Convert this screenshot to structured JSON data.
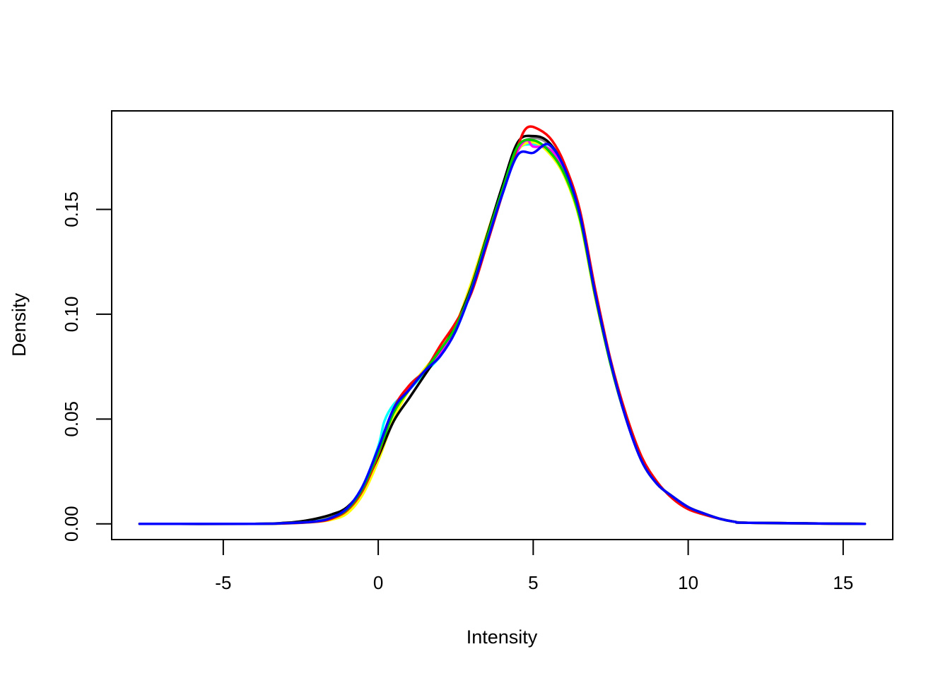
{
  "chart_data": {
    "type": "line",
    "title": "",
    "xlabel": "Intensity",
    "ylabel": "Density",
    "xlim": [
      -8.6,
      16.6
    ],
    "ylim": [
      -0.0075,
      0.197
    ],
    "xticks": [
      -5,
      0,
      5,
      10,
      15
    ],
    "xtick_labels": [
      "-5",
      "0",
      "5",
      "10",
      "15"
    ],
    "yticks": [
      0.0,
      0.05,
      0.1,
      0.15
    ],
    "ytick_labels": [
      "0.00",
      "0.05",
      "0.10",
      "0.15"
    ],
    "grid": false,
    "legend": "none",
    "series": [
      {
        "color": "#888888",
        "points": [
          [
            -7.7,
            0
          ],
          [
            -4,
            0
          ],
          [
            -3,
            0.0005
          ],
          [
            -2,
            0.002
          ],
          [
            -1.5,
            0.004
          ],
          [
            -1,
            0.008
          ],
          [
            -0.5,
            0.017
          ],
          [
            0,
            0.034
          ],
          [
            0.5,
            0.054
          ],
          [
            1,
            0.066
          ],
          [
            1.5,
            0.073
          ],
          [
            2,
            0.082
          ],
          [
            2.5,
            0.094
          ],
          [
            3,
            0.112
          ],
          [
            3.5,
            0.135
          ],
          [
            4,
            0.158
          ],
          [
            4.5,
            0.179
          ],
          [
            5,
            0.184
          ],
          [
            5.5,
            0.181
          ],
          [
            6,
            0.17
          ],
          [
            6.5,
            0.148
          ],
          [
            7,
            0.11
          ],
          [
            7.5,
            0.077
          ],
          [
            8,
            0.051
          ],
          [
            8.5,
            0.03
          ],
          [
            9,
            0.019
          ],
          [
            9.5,
            0.013
          ],
          [
            10,
            0.008
          ],
          [
            10.5,
            0.005
          ],
          [
            11,
            0.0025
          ],
          [
            11.5,
            0.001
          ],
          [
            12,
            0.0005
          ],
          [
            13,
            0.0002
          ],
          [
            15.7,
            0
          ]
        ]
      },
      {
        "color": "#00FFFF",
        "points": [
          [
            -7.7,
            0
          ],
          [
            -4,
            0
          ],
          [
            -3,
            0.0003
          ],
          [
            -2,
            0.0013
          ],
          [
            -1.5,
            0.003
          ],
          [
            -1,
            0.0075
          ],
          [
            -0.5,
            0.018
          ],
          [
            0,
            0.037
          ],
          [
            0.2,
            0.049
          ],
          [
            0.5,
            0.057
          ],
          [
            1,
            0.064
          ],
          [
            1.5,
            0.072
          ],
          [
            2,
            0.08
          ],
          [
            2.5,
            0.092
          ],
          [
            3,
            0.111
          ],
          [
            3.5,
            0.134
          ],
          [
            4,
            0.157
          ],
          [
            4.5,
            0.178
          ],
          [
            5,
            0.181
          ],
          [
            5.5,
            0.179
          ],
          [
            6,
            0.168
          ],
          [
            6.5,
            0.147
          ],
          [
            7,
            0.11
          ],
          [
            7.5,
            0.077
          ],
          [
            8,
            0.05
          ],
          [
            8.5,
            0.03
          ],
          [
            9,
            0.019
          ],
          [
            9.5,
            0.013
          ],
          [
            10,
            0.008
          ],
          [
            10.5,
            0.005
          ],
          [
            11,
            0.0025
          ],
          [
            11.5,
            0.001
          ],
          [
            12,
            0.0005
          ],
          [
            15.7,
            0
          ]
        ]
      },
      {
        "color": "#FFFF00",
        "points": [
          [
            -7.7,
            0
          ],
          [
            -4,
            0
          ],
          [
            -3,
            0.0002
          ],
          [
            -2,
            0.001
          ],
          [
            -1.5,
            0.002
          ],
          [
            -1,
            0.005
          ],
          [
            -0.5,
            0.014
          ],
          [
            0,
            0.03
          ],
          [
            0.5,
            0.05
          ],
          [
            1,
            0.064
          ],
          [
            1.5,
            0.074
          ],
          [
            2,
            0.083
          ],
          [
            2.5,
            0.095
          ],
          [
            3,
            0.115
          ],
          [
            3.5,
            0.138
          ],
          [
            4,
            0.16
          ],
          [
            4.5,
            0.178
          ],
          [
            5,
            0.182
          ],
          [
            5.5,
            0.177
          ],
          [
            6,
            0.166
          ],
          [
            6.5,
            0.145
          ],
          [
            7,
            0.108
          ],
          [
            7.5,
            0.076
          ],
          [
            8,
            0.05
          ],
          [
            8.5,
            0.03
          ],
          [
            9,
            0.019
          ],
          [
            9.5,
            0.013
          ],
          [
            10,
            0.008
          ],
          [
            10.5,
            0.005
          ],
          [
            11,
            0.0025
          ],
          [
            11.5,
            0.001
          ],
          [
            12,
            0.0005
          ],
          [
            15.7,
            0
          ]
        ]
      },
      {
        "color": "#000000",
        "points": [
          [
            -7.7,
            0
          ],
          [
            -4,
            0
          ],
          [
            -3,
            0.0005
          ],
          [
            -2.5,
            0.0012
          ],
          [
            -2,
            0.0025
          ],
          [
            -1.5,
            0.0045
          ],
          [
            -1,
            0.008
          ],
          [
            -0.5,
            0.017
          ],
          [
            0,
            0.032
          ],
          [
            0.5,
            0.049
          ],
          [
            1,
            0.06
          ],
          [
            1.5,
            0.071
          ],
          [
            2,
            0.082
          ],
          [
            2.5,
            0.095
          ],
          [
            3,
            0.113
          ],
          [
            3.5,
            0.137
          ],
          [
            4,
            0.161
          ],
          [
            4.5,
            0.182
          ],
          [
            5,
            0.185
          ],
          [
            5.5,
            0.182
          ],
          [
            6,
            0.17
          ],
          [
            6.5,
            0.147
          ],
          [
            7,
            0.109
          ],
          [
            7.5,
            0.076
          ],
          [
            8,
            0.05
          ],
          [
            8.5,
            0.03
          ],
          [
            9,
            0.019
          ],
          [
            9.5,
            0.013
          ],
          [
            10,
            0.008
          ],
          [
            10.5,
            0.005
          ],
          [
            11,
            0.0025
          ],
          [
            11.5,
            0.001
          ],
          [
            12,
            0.0005
          ],
          [
            15.7,
            0
          ]
        ]
      },
      {
        "color": "#FF00FF",
        "points": [
          [
            -7.7,
            0
          ],
          [
            -4,
            0
          ],
          [
            -3,
            0.0003
          ],
          [
            -2,
            0.0012
          ],
          [
            -1.5,
            0.003
          ],
          [
            -1,
            0.007
          ],
          [
            -0.5,
            0.017
          ],
          [
            0,
            0.035
          ],
          [
            0.5,
            0.054
          ],
          [
            1,
            0.065
          ],
          [
            1.5,
            0.073
          ],
          [
            2,
            0.081
          ],
          [
            2.5,
            0.093
          ],
          [
            3,
            0.112
          ],
          [
            3.5,
            0.135
          ],
          [
            4,
            0.158
          ],
          [
            4.5,
            0.178
          ],
          [
            4.8,
            0.183
          ],
          [
            5,
            0.18
          ],
          [
            5.5,
            0.179
          ],
          [
            6,
            0.169
          ],
          [
            6.5,
            0.147
          ],
          [
            7,
            0.11
          ],
          [
            7.5,
            0.077
          ],
          [
            8,
            0.05
          ],
          [
            8.5,
            0.03
          ],
          [
            9,
            0.019
          ],
          [
            9.5,
            0.013
          ],
          [
            10,
            0.008
          ],
          [
            10.5,
            0.005
          ],
          [
            11,
            0.0025
          ],
          [
            11.5,
            0.001
          ],
          [
            12,
            0.0005
          ],
          [
            15.7,
            0
          ]
        ]
      },
      {
        "color": "#FF0000",
        "points": [
          [
            -7.7,
            0
          ],
          [
            -4,
            0
          ],
          [
            -3,
            0.0002
          ],
          [
            -2,
            0.001
          ],
          [
            -1.5,
            0.0025
          ],
          [
            -1,
            0.0065
          ],
          [
            -0.5,
            0.016
          ],
          [
            0,
            0.033
          ],
          [
            0.5,
            0.055
          ],
          [
            1,
            0.066
          ],
          [
            1.5,
            0.073
          ],
          [
            2,
            0.085
          ],
          [
            2.5,
            0.096
          ],
          [
            3,
            0.11
          ],
          [
            3.5,
            0.133
          ],
          [
            4,
            0.157
          ],
          [
            4.5,
            0.18
          ],
          [
            4.8,
            0.189
          ],
          [
            5.2,
            0.188
          ],
          [
            5.6,
            0.183
          ],
          [
            6,
            0.172
          ],
          [
            6.5,
            0.15
          ],
          [
            7,
            0.112
          ],
          [
            7.5,
            0.078
          ],
          [
            8,
            0.052
          ],
          [
            8.5,
            0.032
          ],
          [
            9,
            0.02
          ],
          [
            9.5,
            0.012
          ],
          [
            10,
            0.007
          ],
          [
            10.5,
            0.0045
          ],
          [
            11,
            0.0025
          ],
          [
            11.5,
            0.001
          ],
          [
            12,
            0.0005
          ],
          [
            15.7,
            0
          ]
        ]
      },
      {
        "color": "#00CD00",
        "points": [
          [
            -7.7,
            0
          ],
          [
            -4,
            0
          ],
          [
            -3,
            0.0003
          ],
          [
            -2,
            0.0012
          ],
          [
            -1.5,
            0.003
          ],
          [
            -1,
            0.007
          ],
          [
            -0.5,
            0.017
          ],
          [
            0,
            0.034
          ],
          [
            0.5,
            0.053
          ],
          [
            1,
            0.064
          ],
          [
            1.5,
            0.073
          ],
          [
            2,
            0.083
          ],
          [
            2.5,
            0.094
          ],
          [
            3,
            0.112
          ],
          [
            3.5,
            0.136
          ],
          [
            4,
            0.159
          ],
          [
            4.5,
            0.18
          ],
          [
            5,
            0.183
          ],
          [
            5.5,
            0.178
          ],
          [
            6,
            0.167
          ],
          [
            6.5,
            0.146
          ],
          [
            7,
            0.109
          ],
          [
            7.5,
            0.076
          ],
          [
            8,
            0.05
          ],
          [
            8.5,
            0.03
          ],
          [
            9,
            0.019
          ],
          [
            9.5,
            0.013
          ],
          [
            10,
            0.008
          ],
          [
            10.5,
            0.005
          ],
          [
            11,
            0.0025
          ],
          [
            11.5,
            0.001
          ],
          [
            12,
            0.0005
          ],
          [
            15.7,
            0
          ]
        ]
      },
      {
        "color": "#0000FF",
        "points": [
          [
            -7.7,
            0
          ],
          [
            -4,
            0
          ],
          [
            -3,
            0.0003
          ],
          [
            -2,
            0.0012
          ],
          [
            -1.5,
            0.003
          ],
          [
            -1,
            0.0075
          ],
          [
            -0.5,
            0.018
          ],
          [
            0,
            0.036
          ],
          [
            0.5,
            0.055
          ],
          [
            1,
            0.064
          ],
          [
            1.5,
            0.073
          ],
          [
            2,
            0.08
          ],
          [
            2.5,
            0.092
          ],
          [
            3,
            0.111
          ],
          [
            3.5,
            0.134
          ],
          [
            4,
            0.157
          ],
          [
            4.5,
            0.176
          ],
          [
            5,
            0.177
          ],
          [
            5.5,
            0.181
          ],
          [
            6,
            0.17
          ],
          [
            6.5,
            0.148
          ],
          [
            7,
            0.11
          ],
          [
            7.5,
            0.077
          ],
          [
            8,
            0.05
          ],
          [
            8.5,
            0.03
          ],
          [
            9,
            0.019
          ],
          [
            9.5,
            0.013
          ],
          [
            10,
            0.008
          ],
          [
            10.5,
            0.005
          ],
          [
            11,
            0.0025
          ],
          [
            11.5,
            0.001
          ],
          [
            12,
            0.0005
          ],
          [
            15.7,
            0
          ]
        ]
      }
    ]
  }
}
